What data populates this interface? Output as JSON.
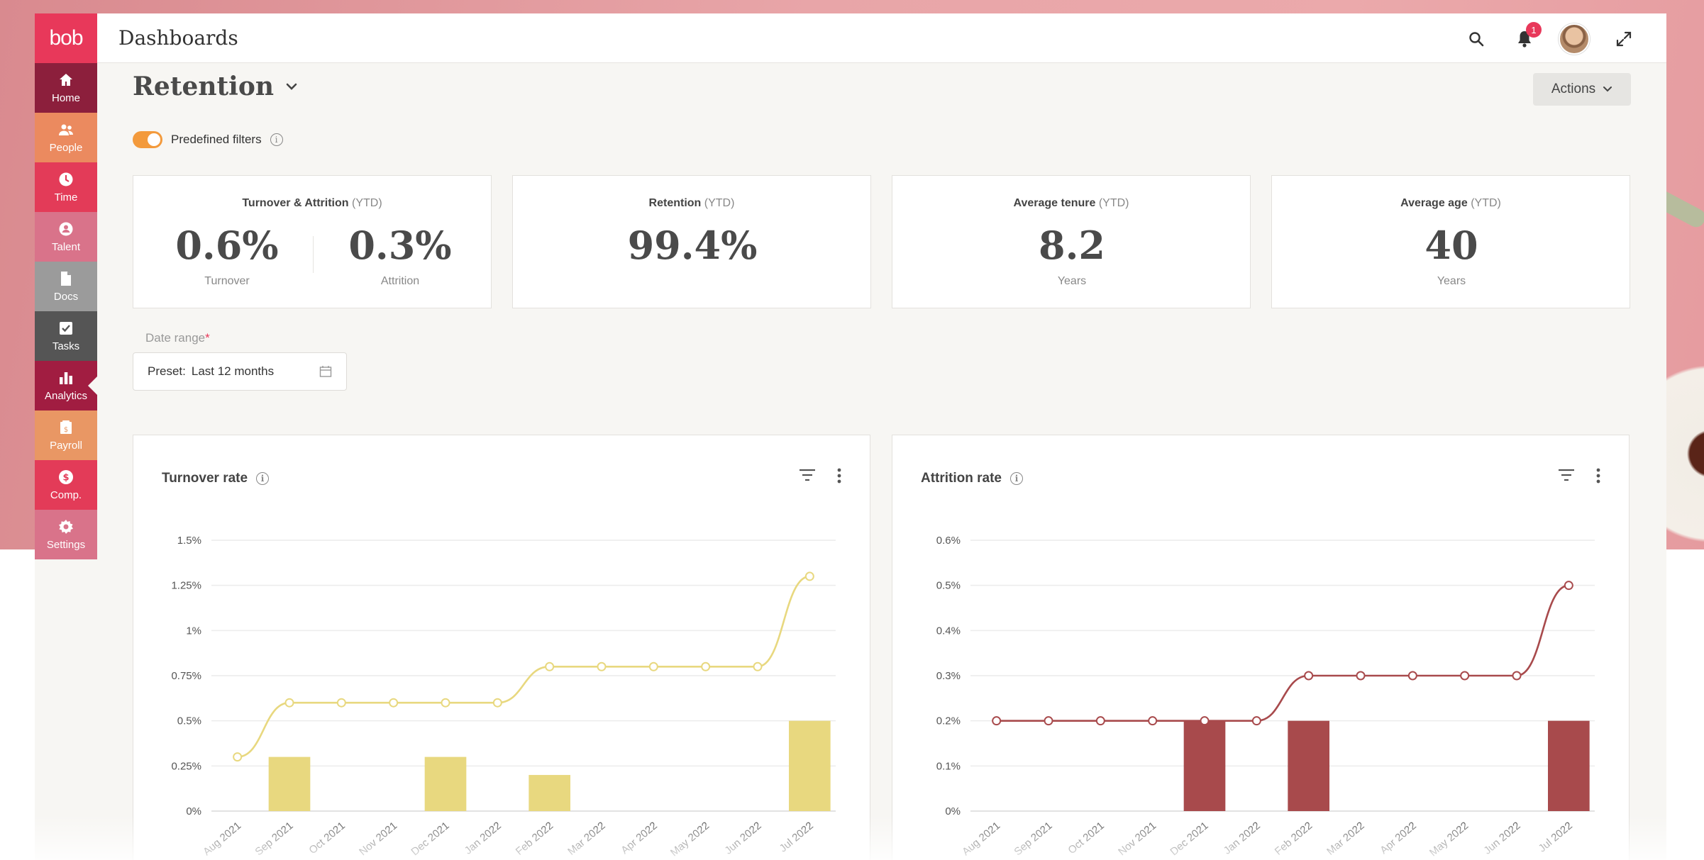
{
  "app": {
    "logo": "bob",
    "title": "Dashboards",
    "notification_count": "1"
  },
  "sidebar": {
    "items": [
      {
        "label": "Home",
        "icon": "home-icon",
        "color": "#8c1f3c",
        "active": false
      },
      {
        "label": "People",
        "icon": "people-icon",
        "color": "#eb8a5f",
        "active": false
      },
      {
        "label": "Time",
        "icon": "clock-icon",
        "color": "#e33b58",
        "active": false
      },
      {
        "label": "Talent",
        "icon": "talent-icon",
        "color": "#d9738a",
        "active": false
      },
      {
        "label": "Docs",
        "icon": "document-icon",
        "color": "#9b9b9b",
        "active": false
      },
      {
        "label": "Tasks",
        "icon": "checkbox-icon",
        "color": "#555555",
        "active": false
      },
      {
        "label": "Analytics",
        "icon": "bar-chart-icon",
        "color": "#a11d41",
        "active": true
      },
      {
        "label": "Payroll",
        "icon": "payroll-icon",
        "color": "#e99764",
        "active": false
      },
      {
        "label": "Comp.",
        "icon": "dollar-icon",
        "color": "#e33b58",
        "active": false
      },
      {
        "label": "Settings",
        "icon": "gear-icon",
        "color": "#d9738a",
        "active": false
      }
    ]
  },
  "page": {
    "title": "Retention",
    "actions_label": "Actions",
    "predefined_filters_label": "Predefined filters",
    "predefined_filters_on": true
  },
  "kpis": [
    {
      "title": "Turnover & Attrition",
      "qualifier": "(YTD)",
      "values": [
        {
          "value": "0.6%",
          "label": "Turnover"
        },
        {
          "value": "0.3%",
          "label": "Attrition"
        }
      ]
    },
    {
      "title": "Retention",
      "qualifier": "(YTD)",
      "values": [
        {
          "value": "99.4%",
          "label": ""
        }
      ]
    },
    {
      "title": "Average tenure",
      "qualifier": "(YTD)",
      "values": [
        {
          "value": "8.2",
          "label": "Years"
        }
      ]
    },
    {
      "title": "Average age",
      "qualifier": "(YTD)",
      "values": [
        {
          "value": "40",
          "label": "Years"
        }
      ]
    }
  ],
  "date_range": {
    "label": "Date range",
    "required_mark": "*",
    "preset_label": "Preset:",
    "preset_value": "Last 12 months"
  },
  "chart_data": [
    {
      "type": "bar",
      "title": "Turnover rate",
      "color": "#e8d87f",
      "line_color": "#e8d87f",
      "categories": [
        "Aug 2021",
        "Sep 2021",
        "Oct 2021",
        "Nov 2021",
        "Dec 2021",
        "Jan 2022",
        "Feb 2022",
        "Mar 2022",
        "Apr 2022",
        "May 2022",
        "Jun 2022",
        "Jul 2022"
      ],
      "y_ticks": [
        "0%",
        "0.25%",
        "0.5%",
        "0.75%",
        "1%",
        "1.25%",
        "1.5%"
      ],
      "ylim": [
        0,
        1.5
      ],
      "series": [
        {
          "kind": "bar",
          "values": [
            0,
            0.3,
            0,
            0,
            0.3,
            0,
            0.2,
            0,
            0,
            0,
            0,
            0.5
          ]
        },
        {
          "kind": "line",
          "values": [
            0.3,
            0.6,
            0.6,
            0.6,
            0.6,
            0.6,
            0.8,
            0.8,
            0.8,
            0.8,
            0.8,
            1.3
          ]
        }
      ],
      "grid": true
    },
    {
      "type": "bar",
      "title": "Attrition rate",
      "color": "#a84a4c",
      "line_color": "#a84a4c",
      "categories": [
        "Aug 2021",
        "Sep 2021",
        "Oct 2021",
        "Nov 2021",
        "Dec 2021",
        "Jan 2022",
        "Feb 2022",
        "Mar 2022",
        "Apr 2022",
        "May 2022",
        "Jun 2022",
        "Jul 2022"
      ],
      "y_ticks": [
        "0%",
        "0.1%",
        "0.2%",
        "0.3%",
        "0.4%",
        "0.5%",
        "0.6%"
      ],
      "ylim": [
        0,
        0.6
      ],
      "series": [
        {
          "kind": "bar",
          "values": [
            0,
            0,
            0,
            0,
            0.2,
            0,
            0.2,
            0,
            0,
            0,
            0,
            0.2
          ]
        },
        {
          "kind": "line",
          "values": [
            0.2,
            0.2,
            0.2,
            0.2,
            0.2,
            0.2,
            0.3,
            0.3,
            0.3,
            0.3,
            0.3,
            0.5
          ]
        }
      ],
      "grid": true
    }
  ]
}
